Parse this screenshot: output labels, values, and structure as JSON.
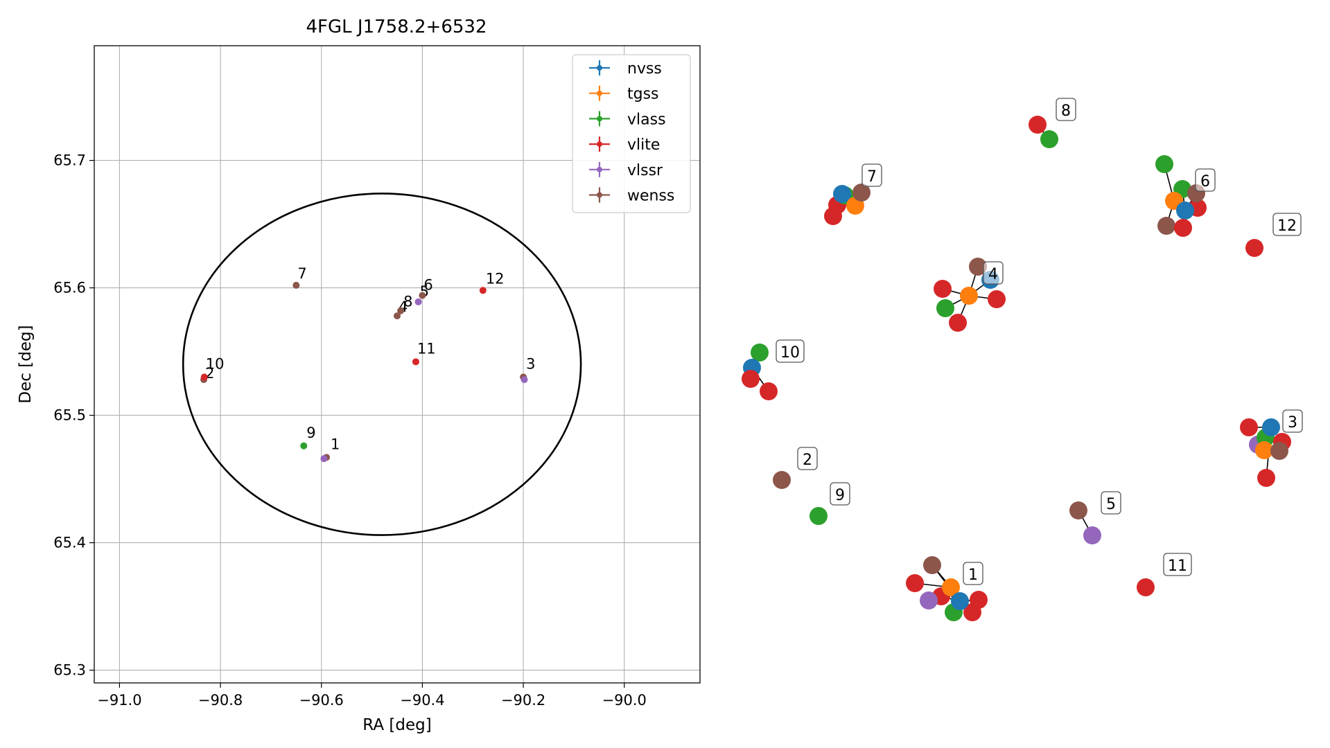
{
  "colors": {
    "nvss": "#1f77b4",
    "tgss": "#ff7f0e",
    "vlass": "#2ca02c",
    "vlite": "#d62728",
    "vlssr": "#9467bd",
    "wenss": "#8c564b"
  },
  "chart_data": [
    {
      "type": "scatter",
      "title": "4FGL J1758.2+6532",
      "xlabel": "RA [deg]",
      "ylabel": "Dec [deg]",
      "xlim": [
        -91.05,
        -89.85
      ],
      "ylim": [
        65.29,
        65.79
      ],
      "x_ticks": [
        -91.0,
        -90.8,
        -90.6,
        -90.4,
        -90.2,
        -90.0
      ],
      "x_tick_labels": [
        "−91.0",
        "−90.8",
        "−90.6",
        "−90.4",
        "−90.2",
        "−90.0"
      ],
      "y_ticks": [
        65.3,
        65.4,
        65.5,
        65.6,
        65.7
      ],
      "y_tick_labels": [
        "65.3",
        "65.4",
        "65.5",
        "65.6",
        "65.7"
      ],
      "grid": true,
      "legend_placement": "top-right",
      "legend": [
        "nvss",
        "tgss",
        "vlass",
        "vlite",
        "vlssr",
        "wenss"
      ],
      "ellipse": {
        "center": [
          -90.48,
          65.54
        ],
        "semi_axis_ra": 0.394,
        "semi_axis_dec": 0.134
      },
      "points": [
        {
          "label": "1",
          "survey": "wenss",
          "ra": -90.59,
          "dec": 65.467
        },
        {
          "label": "1",
          "survey": "vlssr",
          "ra": -90.595,
          "dec": 65.466
        },
        {
          "label": "2",
          "survey": "wenss",
          "ra": -90.833,
          "dec": 65.528
        },
        {
          "label": "3",
          "survey": "wenss",
          "ra": -90.2,
          "dec": 65.53
        },
        {
          "label": "3",
          "survey": "vlssr",
          "ra": -90.198,
          "dec": 65.528
        },
        {
          "label": "4",
          "survey": "wenss",
          "ra": -90.45,
          "dec": 65.578
        },
        {
          "label": "5",
          "survey": "vlssr",
          "ra": -90.408,
          "dec": 65.589
        },
        {
          "label": "6",
          "survey": "wenss",
          "ra": -90.4,
          "dec": 65.594
        },
        {
          "label": "7",
          "survey": "wenss",
          "ra": -90.65,
          "dec": 65.602
        },
        {
          "label": "8",
          "survey": "wenss",
          "ra": -90.443,
          "dec": 65.582
        },
        {
          "label": "9",
          "survey": "vlass",
          "ra": -90.635,
          "dec": 65.476
        },
        {
          "label": "10",
          "survey": "vlite",
          "ra": -90.832,
          "dec": 65.53
        },
        {
          "label": "11",
          "survey": "vlite",
          "ra": -90.413,
          "dec": 65.542
        },
        {
          "label": "12",
          "survey": "vlite",
          "ra": -90.28,
          "dec": 65.598
        }
      ]
    },
    {
      "type": "network",
      "legend": [],
      "nodes": [
        {
          "id": "n1",
          "survey": "vlite",
          "group": "1"
        },
        {
          "id": "n2",
          "survey": "wenss",
          "group": "1"
        },
        {
          "id": "n3",
          "survey": "vlite",
          "group": "1"
        },
        {
          "id": "n4",
          "survey": "tgss",
          "group": "1",
          "label": "1"
        },
        {
          "id": "n5",
          "survey": "vlssr",
          "group": "1"
        },
        {
          "id": "n6",
          "survey": "vlass",
          "group": "1"
        },
        {
          "id": "n7",
          "survey": "vlite",
          "group": "1"
        },
        {
          "id": "n8",
          "survey": "vlite",
          "group": "1"
        },
        {
          "id": "n9",
          "survey": "nvss",
          "group": "1"
        },
        {
          "id": "n10",
          "survey": "wenss",
          "group": "2",
          "label": "2"
        },
        {
          "id": "n11",
          "survey": "vlite",
          "group": "3"
        },
        {
          "id": "n12",
          "survey": "vlssr",
          "group": "3"
        },
        {
          "id": "n13",
          "survey": "vlass",
          "group": "3"
        },
        {
          "id": "n14",
          "survey": "tgss",
          "group": "3"
        },
        {
          "id": "n15",
          "survey": "nvss",
          "group": "3"
        },
        {
          "id": "n16",
          "survey": "vlite",
          "group": "3"
        },
        {
          "id": "n17",
          "survey": "wenss",
          "group": "3"
        },
        {
          "id": "n18",
          "survey": "vlite",
          "group": "3",
          "label": "3"
        },
        {
          "id": "n19",
          "survey": "vlite",
          "group": "4"
        },
        {
          "id": "n20",
          "survey": "wenss",
          "group": "4"
        },
        {
          "id": "n21",
          "survey": "vlass",
          "group": "4"
        },
        {
          "id": "n22",
          "survey": "tgss",
          "group": "4"
        },
        {
          "id": "n23",
          "survey": "nvss",
          "group": "4",
          "label": "4"
        },
        {
          "id": "n24",
          "survey": "vlite",
          "group": "4"
        },
        {
          "id": "n25",
          "survey": "vlite",
          "group": "4"
        },
        {
          "id": "n26",
          "survey": "wenss",
          "group": "5",
          "label": "5"
        },
        {
          "id": "n27",
          "survey": "vlssr",
          "group": "5"
        },
        {
          "id": "n28",
          "survey": "vlass",
          "group": "6"
        },
        {
          "id": "n29",
          "survey": "vlass",
          "group": "6"
        },
        {
          "id": "n30",
          "survey": "tgss",
          "group": "6"
        },
        {
          "id": "n31",
          "survey": "vlite",
          "group": "6"
        },
        {
          "id": "n32",
          "survey": "wenss",
          "group": "6"
        },
        {
          "id": "n33",
          "survey": "nvss",
          "group": "6"
        },
        {
          "id": "n34",
          "survey": "vlite",
          "group": "6"
        },
        {
          "id": "n35",
          "survey": "wenss",
          "group": "6",
          "label": "6"
        },
        {
          "id": "n36",
          "survey": "vlite",
          "group": "7"
        },
        {
          "id": "n37",
          "survey": "vlite",
          "group": "7"
        },
        {
          "id": "n38",
          "survey": "vlass",
          "group": "7"
        },
        {
          "id": "n39",
          "survey": "nvss",
          "group": "7"
        },
        {
          "id": "n40",
          "survey": "tgss",
          "group": "7"
        },
        {
          "id": "n41",
          "survey": "wenss",
          "group": "7",
          "label": "7"
        },
        {
          "id": "n42",
          "survey": "vlite",
          "group": "8",
          "label": "8"
        },
        {
          "id": "n43",
          "survey": "vlass",
          "group": "8"
        },
        {
          "id": "n44",
          "survey": "vlass",
          "group": "9",
          "label": "9"
        },
        {
          "id": "n45",
          "survey": "vlass",
          "group": "10",
          "label": "10"
        },
        {
          "id": "n46",
          "survey": "nvss",
          "group": "10"
        },
        {
          "id": "n47",
          "survey": "vlite",
          "group": "10"
        },
        {
          "id": "n48",
          "survey": "vlite",
          "group": "10"
        },
        {
          "id": "n49",
          "survey": "vlite",
          "group": "11",
          "label": "11"
        },
        {
          "id": "n50",
          "survey": "vlite",
          "group": "12",
          "label": "12"
        }
      ],
      "edges": [
        [
          "n1",
          "n4"
        ],
        [
          "n2",
          "n4"
        ],
        [
          "n3",
          "n9"
        ],
        [
          "n4",
          "n9"
        ],
        [
          "n5",
          "n4"
        ],
        [
          "n6",
          "n4"
        ],
        [
          "n7",
          "n9"
        ],
        [
          "n8",
          "n9"
        ],
        [
          "n2",
          "n9"
        ],
        [
          "n11",
          "n15"
        ],
        [
          "n12",
          "n14"
        ],
        [
          "n13",
          "n15"
        ],
        [
          "n14",
          "n15"
        ],
        [
          "n16",
          "n14"
        ],
        [
          "n17",
          "n14"
        ],
        [
          "n18",
          "n15"
        ],
        [
          "n19",
          "n22"
        ],
        [
          "n20",
          "n22"
        ],
        [
          "n21",
          "n22"
        ],
        [
          "n22",
          "n23"
        ],
        [
          "n24",
          "n22"
        ],
        [
          "n25",
          "n22"
        ],
        [
          "n20",
          "n23"
        ],
        [
          "n26",
          "n27"
        ],
        [
          "n28",
          "n30"
        ],
        [
          "n29",
          "n33"
        ],
        [
          "n30",
          "n33"
        ],
        [
          "n31",
          "n30"
        ],
        [
          "n32",
          "n30"
        ],
        [
          "n34",
          "n33"
        ],
        [
          "n35",
          "n33"
        ],
        [
          "n36",
          "n39"
        ],
        [
          "n37",
          "n40"
        ],
        [
          "n38",
          "n39"
        ],
        [
          "n39",
          "n40"
        ],
        [
          "n41",
          "n39"
        ],
        [
          "n42",
          "n43"
        ],
        [
          "n45",
          "n46"
        ],
        [
          "n46",
          "n47"
        ],
        [
          "n46",
          "n48"
        ]
      ]
    }
  ]
}
